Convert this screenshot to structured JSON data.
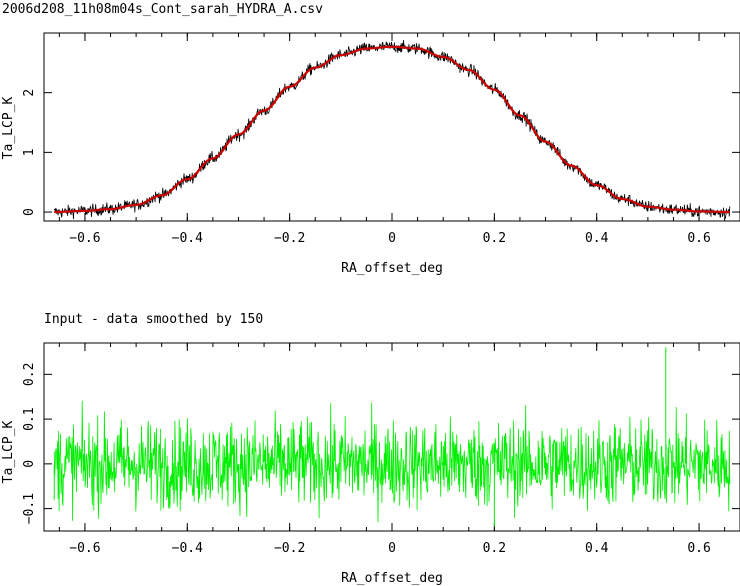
{
  "chart_data": [
    {
      "type": "line",
      "title": "2006d208_11h08m04s_Cont_sarah_HYDRA_A.csv",
      "xlabel": "RA_offset_deg",
      "ylabel": "Ta_LCP_K",
      "xlim": [
        -0.68,
        0.68
      ],
      "ylim": [
        -0.15,
        3.0
      ],
      "xticks": [
        -0.6,
        -0.4,
        -0.2,
        0,
        0.2,
        0.4,
        0.6
      ],
      "xtick_labels": [
        "−0.6",
        "−0.4",
        "−0.2",
        "0",
        "0.2",
        "0.4",
        "0.6"
      ],
      "yticks": [
        0,
        1,
        2
      ],
      "ytick_labels": [
        "0",
        "1",
        "2"
      ],
      "grid": false,
      "series": [
        {
          "color": "#000000",
          "style": "noisy-data",
          "x": [
            -0.66,
            -0.6,
            -0.55,
            -0.5,
            -0.45,
            -0.4,
            -0.35,
            -0.3,
            -0.25,
            -0.2,
            -0.15,
            -0.1,
            -0.05,
            0,
            0.05,
            0.1,
            0.15,
            0.2,
            0.25,
            0.3,
            0.35,
            0.4,
            0.45,
            0.5,
            0.55,
            0.6,
            0.66
          ],
          "values": [
            0.0,
            0.02,
            0.05,
            0.12,
            0.28,
            0.55,
            0.9,
            1.3,
            1.7,
            2.1,
            2.42,
            2.63,
            2.74,
            2.77,
            2.74,
            2.6,
            2.38,
            2.05,
            1.62,
            1.18,
            0.78,
            0.45,
            0.22,
            0.09,
            0.04,
            0.01,
            0.0
          ],
          "noise": 0.05
        },
        {
          "color": "#cc0000",
          "style": "smoothed-fit",
          "x": [
            -0.66,
            -0.6,
            -0.55,
            -0.5,
            -0.45,
            -0.4,
            -0.35,
            -0.3,
            -0.25,
            -0.2,
            -0.15,
            -0.1,
            -0.05,
            0,
            0.05,
            0.1,
            0.15,
            0.2,
            0.25,
            0.3,
            0.35,
            0.4,
            0.45,
            0.5,
            0.55,
            0.6,
            0.66
          ],
          "values": [
            0.0,
            0.02,
            0.05,
            0.12,
            0.28,
            0.55,
            0.9,
            1.3,
            1.7,
            2.1,
            2.42,
            2.63,
            2.74,
            2.77,
            2.74,
            2.6,
            2.38,
            2.05,
            1.62,
            1.18,
            0.78,
            0.45,
            0.22,
            0.09,
            0.04,
            0.01,
            0.0
          ]
        }
      ]
    },
    {
      "type": "line",
      "title": "Input - data smoothed by  150",
      "xlabel": "RA_offset_deg",
      "ylabel": "Ta_LCP_K",
      "xlim": [
        -0.68,
        0.68
      ],
      "ylim": [
        -0.15,
        0.27
      ],
      "xticks": [
        -0.6,
        -0.4,
        -0.2,
        0,
        0.2,
        0.4,
        0.6
      ],
      "xtick_labels": [
        "−0.6",
        "−0.4",
        "−0.2",
        "0",
        "0.2",
        "0.4",
        "0.6"
      ],
      "yticks": [
        -0.1,
        0,
        0.1,
        0.2
      ],
      "ytick_labels": [
        "−0.1",
        "0",
        "0.1",
        "0.2"
      ],
      "grid": false,
      "series": [
        {
          "color": "#00ee00",
          "style": "residual-noise",
          "x_range": [
            -0.66,
            0.66
          ],
          "mean": 0.0,
          "amplitude": 0.08,
          "spikes": [
            {
              "x": 0.535,
              "y": 0.26
            },
            {
              "x": 0.2,
              "y": -0.14
            },
            {
              "x": -0.66,
              "y": -0.08
            }
          ]
        }
      ]
    }
  ]
}
